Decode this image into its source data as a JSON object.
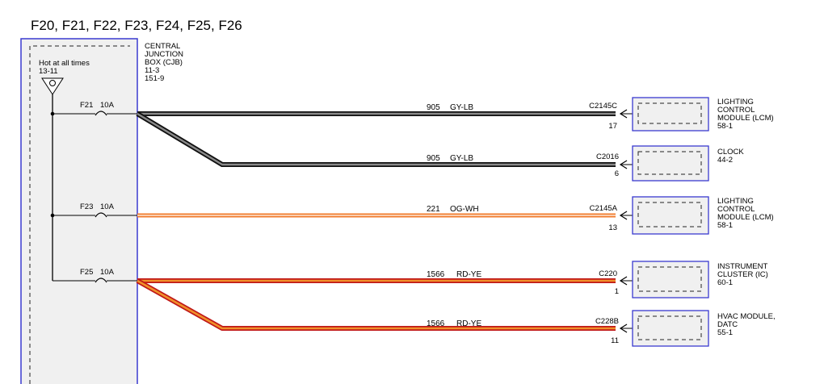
{
  "title": "F20, F21, F22, F23, F24, F25, F26",
  "cjb": {
    "label": [
      "CENTRAL",
      "JUNCTION",
      "BOX (CJB)",
      "11-3",
      "151-9"
    ],
    "hot_label": "Hot at all times",
    "hot_ref": "13-11"
  },
  "fuses": [
    {
      "name": "F21",
      "rating": "10A"
    },
    {
      "name": "F23",
      "rating": "10A"
    },
    {
      "name": "F25",
      "rating": "10A"
    }
  ],
  "circuits": [
    {
      "circuit": "905",
      "color": "GY-LB",
      "connector": "C2145C",
      "pin": "17",
      "module": [
        "LIGHTING",
        "CONTROL",
        "MODULE (LCM)",
        "58-1"
      ]
    },
    {
      "circuit": "905",
      "color": "GY-LB",
      "connector": "C2016",
      "pin": "6",
      "module": [
        "CLOCK",
        "44-2"
      ]
    },
    {
      "circuit": "221",
      "color": "OG-WH",
      "connector": "C2145A",
      "pin": "13",
      "module": [
        "LIGHTING",
        "CONTROL",
        "MODULE (LCM)",
        "58-1"
      ]
    },
    {
      "circuit": "1566",
      "color": "RD-YE",
      "connector": "C220",
      "pin": "1",
      "module": [
        "INSTRUMENT",
        "CLUSTER (IC)",
        "60-1"
      ]
    },
    {
      "circuit": "1566",
      "color": "RD-YE",
      "connector": "C228B",
      "pin": "11",
      "module": [
        "HVAC MODULE,",
        "DATC",
        "55-1"
      ]
    }
  ],
  "colors": {
    "box_border": "#3a3ad0",
    "box_fill": "#f0f0f0",
    "wire_gray": "#8a8a8a",
    "wire_dark": "#101010",
    "wire_orange": "#f07a2a",
    "wire_red": "#c01818"
  }
}
